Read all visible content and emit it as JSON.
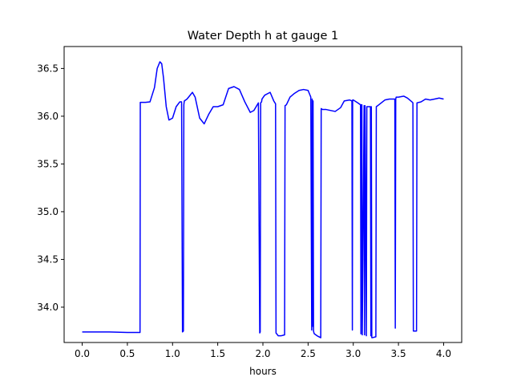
{
  "chart_data": {
    "type": "line",
    "title": "Water Depth h at gauge 1",
    "xlabel": "hours",
    "ylabel": "",
    "xlim": [
      -0.2,
      4.2
    ],
    "ylim": [
      33.63,
      36.73
    ],
    "xticks": [
      0.0,
      0.5,
      1.0,
      1.5,
      2.0,
      2.5,
      3.0,
      3.5,
      4.0
    ],
    "xtick_labels": [
      "0.0",
      "0.5",
      "1.0",
      "1.5",
      "2.0",
      "2.5",
      "3.0",
      "3.5",
      "4.0"
    ],
    "yticks": [
      34.0,
      34.5,
      35.0,
      35.5,
      36.0,
      36.5
    ],
    "ytick_labels": [
      "34.0",
      "34.5",
      "35.0",
      "35.5",
      "36.0",
      "36.5"
    ],
    "grid": false,
    "color": "#0000ff",
    "series": [
      {
        "x": [
          0.0,
          0.3,
          0.5,
          0.64,
          0.643,
          0.7,
          0.75,
          0.8,
          0.83,
          0.86,
          0.88,
          0.9,
          0.93,
          0.96,
          1.0,
          1.04,
          1.08,
          1.1,
          1.11,
          1.12,
          1.125,
          1.13,
          1.16,
          1.22,
          1.25,
          1.3,
          1.35,
          1.4,
          1.45,
          1.5,
          1.56,
          1.62,
          1.68,
          1.74,
          1.8,
          1.86,
          1.9,
          1.95,
          1.965,
          1.97,
          1.975,
          1.985,
          1.99,
          2.02,
          2.08,
          2.12,
          2.14,
          2.145,
          2.17,
          2.2,
          2.24,
          2.245,
          2.26,
          2.3,
          2.35,
          2.4,
          2.45,
          2.5,
          2.53,
          2.54,
          2.545,
          2.55,
          2.555,
          2.56,
          2.565,
          2.57,
          2.6,
          2.64,
          2.645,
          2.66,
          2.7,
          2.8,
          2.86,
          2.9,
          2.96,
          2.985,
          2.99,
          2.993,
          3.0,
          3.05,
          3.08,
          3.085,
          3.09,
          3.095,
          3.1,
          3.12,
          3.125,
          3.13,
          3.145,
          3.15,
          3.16,
          3.19,
          3.195,
          3.2,
          3.205,
          3.21,
          3.25,
          3.255,
          3.27,
          3.35,
          3.4,
          3.44,
          3.46,
          3.465,
          3.47,
          3.475,
          3.5,
          3.56,
          3.6,
          3.65,
          3.66,
          3.665,
          3.7,
          3.705,
          3.75,
          3.8,
          3.85,
          3.9,
          3.95,
          4.0
        ],
        "y": [
          33.74,
          33.74,
          33.735,
          33.735,
          36.145,
          36.145,
          36.15,
          36.3,
          36.5,
          36.57,
          36.55,
          36.4,
          36.1,
          35.96,
          35.98,
          36.1,
          36.15,
          36.15,
          33.74,
          33.75,
          36.12,
          36.16,
          36.18,
          36.25,
          36.2,
          35.98,
          35.92,
          36.02,
          36.1,
          36.1,
          36.12,
          36.29,
          36.31,
          36.28,
          36.15,
          36.04,
          36.06,
          36.14,
          33.73,
          33.74,
          36.14,
          36.15,
          36.18,
          36.22,
          36.25,
          36.16,
          36.13,
          33.73,
          33.7,
          33.7,
          33.71,
          36.11,
          36.12,
          36.2,
          36.24,
          36.27,
          36.28,
          36.27,
          36.2,
          33.76,
          36.18,
          33.8,
          36.16,
          33.75,
          33.73,
          33.72,
          33.7,
          33.68,
          36.08,
          36.07,
          36.07,
          36.05,
          36.09,
          36.16,
          36.17,
          36.16,
          33.76,
          36.17,
          36.17,
          36.14,
          36.12,
          33.72,
          36.12,
          36.12,
          33.71,
          36.11,
          33.71,
          36.11,
          33.7,
          36.1,
          36.1,
          36.1,
          33.7,
          36.1,
          33.68,
          33.68,
          33.69,
          36.1,
          36.11,
          36.17,
          36.18,
          36.18,
          36.18,
          33.78,
          36.18,
          36.2,
          36.2,
          36.21,
          36.19,
          36.15,
          36.14,
          33.75,
          33.75,
          36.14,
          36.15,
          36.18,
          36.17,
          36.18,
          36.19,
          36.18
        ]
      }
    ]
  }
}
